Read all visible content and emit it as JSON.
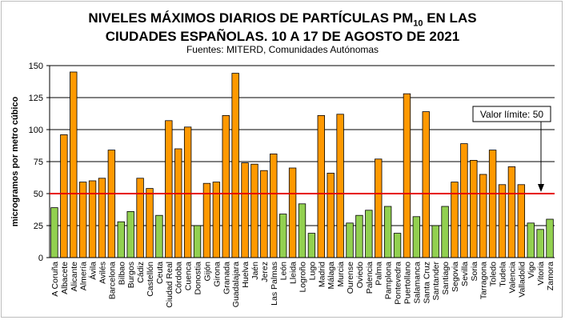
{
  "chart_data": {
    "type": "bar",
    "title_line1_pre": "NIVELES MÁXIMOS DIARIOS DE PARTÍCULAS PM",
    "title_sub": "10",
    "title_line1_post": " EN LAS",
    "title_line2": "CIUDADES ESPAÑOLAS. 10 A 17 DE AGOSTO DE 2021",
    "subtitle": "Fuentes: MITERD, Comunidades  Autónomas",
    "ylabel": "microgramos por metro cúbico",
    "ylim": [
      0,
      150
    ],
    "yticks": [
      "0",
      "25",
      "50",
      "75",
      "100",
      "125",
      "150"
    ],
    "limit_value": 50,
    "limit_label": "Valor límite: 50",
    "colors": {
      "above": "#ff9900",
      "below": "#92d050",
      "limit": "#e60000",
      "grid": "#000000"
    },
    "categories": [
      "A Coruña",
      "Albacete",
      "Alicante",
      "Almería",
      "Ávila",
      "Avilés",
      "Barcelona",
      "Bilbao",
      "Burgos",
      "Cádiz",
      "Castellón",
      "Ceuta",
      "Ciudad Real",
      "Córdoba",
      "Cuenca",
      "Donostia",
      "Gijón",
      "Girona",
      "Granada",
      "Guadalajara",
      "Huelva",
      "Jaén",
      "Jerez",
      "Las Palmas",
      "León",
      "Lleida",
      "Logroño",
      "Lugo",
      "Madrid",
      "Málaga",
      "Murcia",
      "Ourense",
      "Oviedo",
      "Palencia",
      "Palma",
      "Pamplona",
      "Pontevedra",
      "Puertollano",
      "Salamanca",
      "Santa Cruz",
      "Santander",
      "Santiago",
      "Segovia",
      "Sevilla",
      "Soria",
      "Tarragona",
      "Toledo",
      "Tudela",
      "Valencia",
      "Valladolid",
      "Vigo",
      "Vitoria",
      "Zamora"
    ],
    "values": [
      39,
      96,
      145,
      59,
      60,
      62,
      84,
      28,
      36,
      62,
      54,
      33,
      107,
      85,
      102,
      25,
      58,
      59,
      111,
      144,
      74,
      73,
      68,
      81,
      34,
      70,
      42,
      19,
      111,
      66,
      112,
      27,
      33,
      37,
      77,
      40,
      19,
      128,
      32,
      114,
      25,
      40,
      59,
      89,
      76,
      65,
      84,
      57,
      71,
      57,
      27,
      22,
      30
    ]
  }
}
